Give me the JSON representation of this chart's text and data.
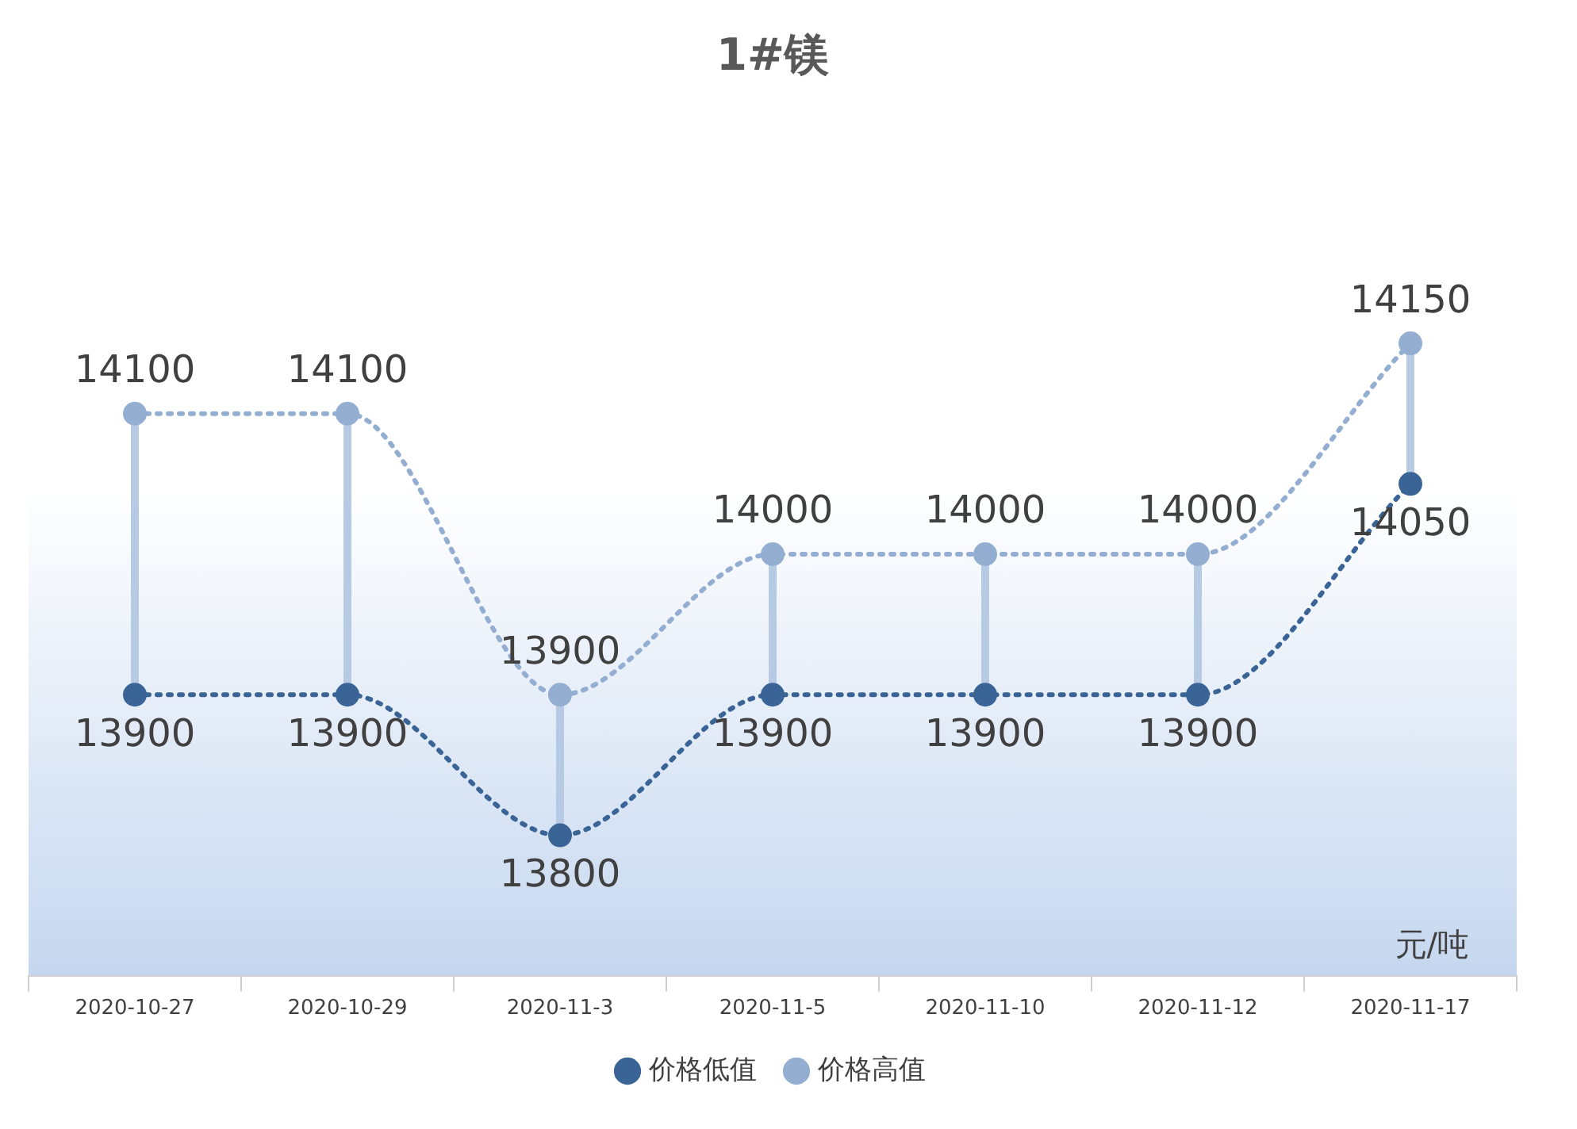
{
  "chart_data": {
    "type": "line",
    "title": "1#镁",
    "annotations": [
      "元/吨"
    ],
    "categories": [
      "2020-10-27",
      "2020-10-29",
      "2020-11-3",
      "2020-11-5",
      "2020-11-10",
      "2020-11-12",
      "2020-11-17"
    ],
    "series": [
      {
        "name": "价格低值",
        "color": "#3a6496",
        "values": [
          13900,
          13900,
          13800,
          13900,
          13900,
          13900,
          14050
        ]
      },
      {
        "name": "价格高值",
        "color": "#94aed2",
        "values": [
          14100,
          14100,
          13900,
          14000,
          14000,
          14000,
          14150
        ]
      }
    ],
    "data_labels": true,
    "legend": "bottom",
    "grid": false,
    "marker": "circle",
    "line_style": "dotted"
  }
}
